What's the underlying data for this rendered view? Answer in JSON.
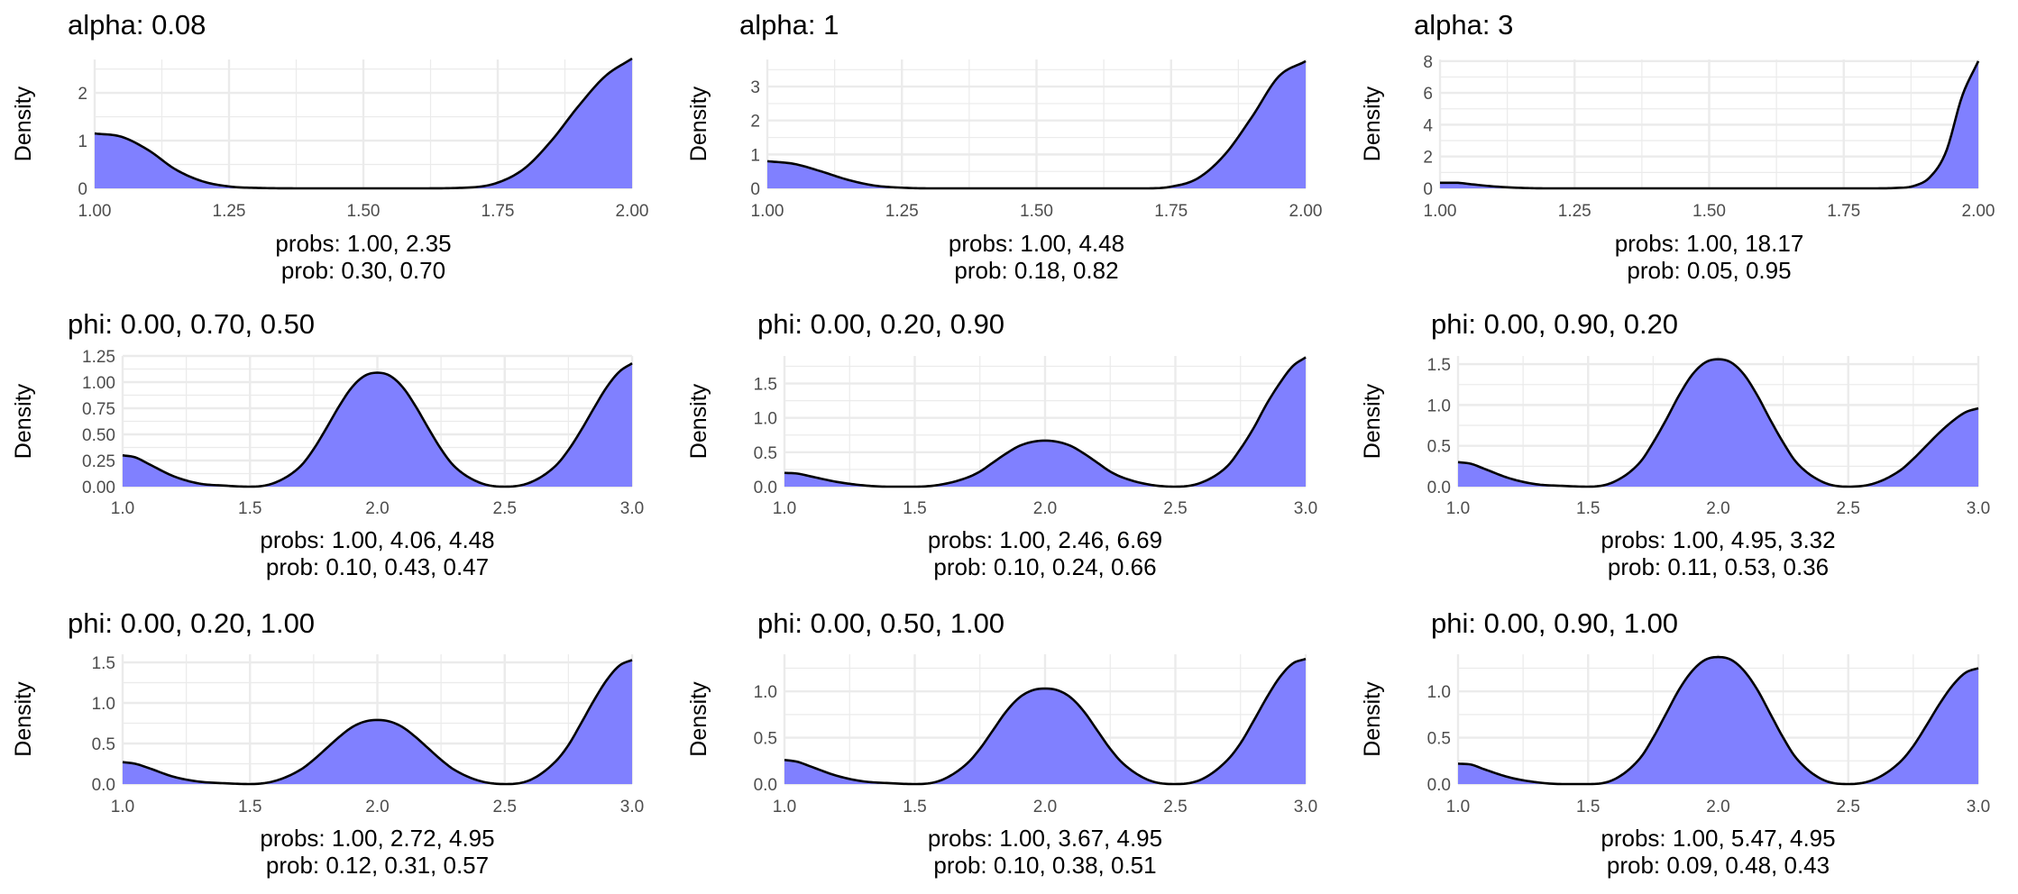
{
  "figure": {
    "background": "#ffffff",
    "fill_color": "#8080ff",
    "line_color": "#000000",
    "grid_color": "#ebebeb"
  },
  "chart_data": [
    {
      "type": "area",
      "title": "alpha: 0.08",
      "ylabel": "Density",
      "xlabel_lines": [
        "probs: 1.00, 2.35",
        "prob: 0.30, 0.70"
      ],
      "xlim": [
        1.0,
        2.0
      ],
      "ylim": [
        0,
        2.7
      ],
      "x_ticks": [
        1.0,
        1.25,
        1.5,
        1.75,
        2.0
      ],
      "x_tick_labels": [
        "1.00",
        "1.25",
        "1.50",
        "1.75",
        "2.00"
      ],
      "y_ticks": [
        0,
        1,
        2
      ],
      "y_tick_labels": [
        "0",
        "1",
        "2"
      ],
      "grid": true,
      "x": [
        1.0,
        1.05,
        1.1,
        1.15,
        1.2,
        1.25,
        1.3,
        1.4,
        1.5,
        1.6,
        1.7,
        1.75,
        1.8,
        1.85,
        1.9,
        1.95,
        2.0
      ],
      "density": [
        1.15,
        1.08,
        0.8,
        0.4,
        0.15,
        0.04,
        0.01,
        0.0,
        0.0,
        0.0,
        0.02,
        0.12,
        0.42,
        1.0,
        1.72,
        2.35,
        2.72
      ]
    },
    {
      "type": "area",
      "title": "alpha: 1",
      "ylabel": "Density",
      "xlabel_lines": [
        "probs: 1.00, 4.48",
        "prob: 0.18, 0.82"
      ],
      "xlim": [
        1.0,
        2.0
      ],
      "ylim": [
        0,
        3.8
      ],
      "x_ticks": [
        1.0,
        1.25,
        1.5,
        1.75,
        2.0
      ],
      "x_tick_labels": [
        "1.00",
        "1.25",
        "1.50",
        "1.75",
        "2.00"
      ],
      "y_ticks": [
        0,
        1,
        2,
        3
      ],
      "y_tick_labels": [
        "0",
        "1",
        "2",
        "3"
      ],
      "grid": true,
      "x": [
        1.0,
        1.05,
        1.1,
        1.15,
        1.2,
        1.25,
        1.3,
        1.4,
        1.5,
        1.6,
        1.7,
        1.75,
        1.8,
        1.85,
        1.9,
        1.95,
        2.0
      ],
      "density": [
        0.8,
        0.72,
        0.5,
        0.25,
        0.08,
        0.02,
        0.0,
        0.0,
        0.0,
        0.0,
        0.0,
        0.05,
        0.3,
        1.0,
        2.1,
        3.3,
        3.75
      ]
    },
    {
      "type": "area",
      "title": "alpha: 3",
      "ylabel": "Density",
      "xlabel_lines": [
        "probs: 1.00, 18.17",
        "prob: 0.05, 0.95"
      ],
      "xlim": [
        1.0,
        2.0
      ],
      "ylim": [
        0,
        8.1
      ],
      "x_ticks": [
        1.0,
        1.25,
        1.5,
        1.75,
        2.0
      ],
      "x_tick_labels": [
        "1.00",
        "1.25",
        "1.50",
        "1.75",
        "2.00"
      ],
      "y_ticks": [
        0,
        2,
        4,
        6,
        8
      ],
      "y_tick_labels": [
        "0",
        "2",
        "4",
        "6",
        "8"
      ],
      "grid": true,
      "x": [
        1.0,
        1.03,
        1.06,
        1.1,
        1.15,
        1.2,
        1.4,
        1.6,
        1.8,
        1.85,
        1.88,
        1.91,
        1.94,
        1.97,
        2.0
      ],
      "density": [
        0.35,
        0.35,
        0.25,
        0.12,
        0.03,
        0.0,
        0.0,
        0.0,
        0.0,
        0.03,
        0.15,
        0.7,
        2.3,
        5.8,
        8.0
      ]
    },
    {
      "type": "area",
      "title": "phi: 0.00, 0.70, 0.50",
      "ylabel": "Density",
      "xlabel_lines": [
        "probs: 1.00, 4.06, 4.48",
        "prob: 0.10, 0.43, 0.47"
      ],
      "xlim": [
        1.0,
        3.0
      ],
      "ylim": [
        0,
        1.25
      ],
      "x_ticks": [
        1.0,
        1.5,
        2.0,
        2.5,
        3.0
      ],
      "x_tick_labels": [
        "1.0",
        "1.5",
        "2.0",
        "2.5",
        "3.0"
      ],
      "y_ticks": [
        0,
        0.25,
        0.5,
        0.75,
        1.0,
        1.25
      ],
      "y_tick_labels": [
        "0.00",
        "0.25",
        "0.50",
        "0.75",
        "1.00",
        "1.25"
      ],
      "grid": true,
      "x": [
        1.0,
        1.05,
        1.1,
        1.2,
        1.3,
        1.4,
        1.5,
        1.6,
        1.7,
        1.75,
        1.8,
        1.85,
        1.9,
        1.95,
        2.0,
        2.05,
        2.1,
        2.15,
        2.2,
        2.25,
        2.3,
        2.4,
        2.5,
        2.6,
        2.7,
        2.75,
        2.8,
        2.85,
        2.9,
        2.95,
        3.0
      ],
      "density": [
        0.3,
        0.28,
        0.22,
        0.1,
        0.03,
        0.01,
        0.0,
        0.04,
        0.2,
        0.36,
        0.56,
        0.77,
        0.95,
        1.06,
        1.09,
        1.06,
        0.95,
        0.77,
        0.56,
        0.36,
        0.2,
        0.04,
        0.0,
        0.04,
        0.2,
        0.35,
        0.54,
        0.75,
        0.95,
        1.1,
        1.18
      ]
    },
    {
      "type": "area",
      "title": "phi: 0.00, 0.20, 0.90",
      "ylabel": "Density",
      "xlabel_lines": [
        "probs: 1.00, 2.46, 6.69",
        "prob: 0.10, 0.24, 0.66"
      ],
      "xlim": [
        1.0,
        3.0
      ],
      "ylim": [
        0,
        1.9
      ],
      "x_ticks": [
        1.0,
        1.5,
        2.0,
        2.5,
        3.0
      ],
      "x_tick_labels": [
        "1.0",
        "1.5",
        "2.0",
        "2.5",
        "3.0"
      ],
      "y_ticks": [
        0,
        0.5,
        1.0,
        1.5
      ],
      "y_tick_labels": [
        "0.0",
        "0.5",
        "1.0",
        "1.5"
      ],
      "grid": true,
      "x": [
        1.0,
        1.05,
        1.1,
        1.2,
        1.3,
        1.4,
        1.5,
        1.6,
        1.7,
        1.75,
        1.8,
        1.85,
        1.9,
        1.95,
        2.0,
        2.05,
        2.1,
        2.15,
        2.2,
        2.25,
        2.3,
        2.4,
        2.5,
        2.6,
        2.7,
        2.75,
        2.8,
        2.85,
        2.9,
        2.95,
        3.0
      ],
      "density": [
        0.2,
        0.19,
        0.15,
        0.07,
        0.02,
        0.0,
        0.0,
        0.03,
        0.13,
        0.22,
        0.35,
        0.48,
        0.59,
        0.65,
        0.67,
        0.65,
        0.59,
        0.48,
        0.35,
        0.22,
        0.13,
        0.03,
        0.0,
        0.06,
        0.3,
        0.55,
        0.85,
        1.2,
        1.5,
        1.75,
        1.88
      ]
    },
    {
      "type": "area",
      "title": "phi: 0.00, 0.90, 0.20",
      "ylabel": "Density",
      "xlabel_lines": [
        "probs: 1.00, 4.95, 3.32",
        "prob: 0.11, 0.53, 0.36"
      ],
      "xlim": [
        1.0,
        3.0
      ],
      "ylim": [
        0,
        1.6
      ],
      "x_ticks": [
        1.0,
        1.5,
        2.0,
        2.5,
        3.0
      ],
      "x_tick_labels": [
        "1.0",
        "1.5",
        "2.0",
        "2.5",
        "3.0"
      ],
      "y_ticks": [
        0,
        0.5,
        1.0,
        1.5
      ],
      "y_tick_labels": [
        "0.0",
        "0.5",
        "1.0",
        "1.5"
      ],
      "grid": true,
      "x": [
        1.0,
        1.05,
        1.1,
        1.2,
        1.3,
        1.4,
        1.5,
        1.6,
        1.7,
        1.75,
        1.8,
        1.85,
        1.9,
        1.95,
        2.0,
        2.05,
        2.1,
        2.15,
        2.2,
        2.25,
        2.3,
        2.4,
        2.5,
        2.6,
        2.7,
        2.75,
        2.8,
        2.85,
        2.9,
        2.95,
        3.0
      ],
      "density": [
        0.3,
        0.28,
        0.22,
        0.1,
        0.03,
        0.01,
        0.0,
        0.06,
        0.3,
        0.54,
        0.82,
        1.12,
        1.37,
        1.52,
        1.56,
        1.52,
        1.37,
        1.12,
        0.82,
        0.54,
        0.3,
        0.06,
        0.0,
        0.04,
        0.2,
        0.34,
        0.5,
        0.66,
        0.8,
        0.91,
        0.96
      ]
    },
    {
      "type": "area",
      "title": "phi: 0.00, 0.20, 1.00",
      "ylabel": "Density",
      "xlabel_lines": [
        "probs: 1.00, 2.72, 4.95",
        "prob: 0.12, 0.31, 0.57"
      ],
      "xlim": [
        1.0,
        3.0
      ],
      "ylim": [
        0,
        1.6
      ],
      "x_ticks": [
        1.0,
        1.5,
        2.0,
        2.5,
        3.0
      ],
      "x_tick_labels": [
        "1.0",
        "1.5",
        "2.0",
        "2.5",
        "3.0"
      ],
      "y_ticks": [
        0,
        0.5,
        1.0,
        1.5
      ],
      "y_tick_labels": [
        "0.0",
        "0.5",
        "1.0",
        "1.5"
      ],
      "grid": true,
      "x": [
        1.0,
        1.05,
        1.1,
        1.2,
        1.3,
        1.4,
        1.5,
        1.6,
        1.7,
        1.75,
        1.8,
        1.85,
        1.9,
        1.95,
        2.0,
        2.05,
        2.1,
        2.15,
        2.2,
        2.25,
        2.3,
        2.4,
        2.5,
        2.6,
        2.7,
        2.75,
        2.8,
        2.85,
        2.9,
        2.95,
        3.0
      ],
      "density": [
        0.27,
        0.25,
        0.2,
        0.09,
        0.03,
        0.01,
        0.0,
        0.04,
        0.18,
        0.3,
        0.44,
        0.58,
        0.7,
        0.77,
        0.79,
        0.77,
        0.7,
        0.58,
        0.44,
        0.3,
        0.18,
        0.04,
        0.0,
        0.05,
        0.28,
        0.48,
        0.75,
        1.03,
        1.28,
        1.46,
        1.53
      ]
    },
    {
      "type": "area",
      "title": "phi: 0.00, 0.50, 1.00",
      "ylabel": "Density",
      "xlabel_lines": [
        "probs: 1.00, 3.67, 4.95",
        "prob: 0.10, 0.38, 0.51"
      ],
      "xlim": [
        1.0,
        3.0
      ],
      "ylim": [
        0,
        1.4
      ],
      "x_ticks": [
        1.0,
        1.5,
        2.0,
        2.5,
        3.0
      ],
      "x_tick_labels": [
        "1.0",
        "1.5",
        "2.0",
        "2.5",
        "3.0"
      ],
      "y_ticks": [
        0,
        0.5,
        1.0
      ],
      "y_tick_labels": [
        "0.0",
        "0.5",
        "1.0"
      ],
      "grid": true,
      "x": [
        1.0,
        1.05,
        1.1,
        1.2,
        1.3,
        1.4,
        1.5,
        1.6,
        1.7,
        1.75,
        1.8,
        1.85,
        1.9,
        1.95,
        2.0,
        2.05,
        2.1,
        2.15,
        2.2,
        2.25,
        2.3,
        2.4,
        2.5,
        2.6,
        2.7,
        2.75,
        2.8,
        2.85,
        2.9,
        2.95,
        3.0
      ],
      "density": [
        0.26,
        0.24,
        0.19,
        0.09,
        0.03,
        0.01,
        0.0,
        0.04,
        0.22,
        0.38,
        0.58,
        0.78,
        0.93,
        1.01,
        1.03,
        1.01,
        0.93,
        0.78,
        0.58,
        0.38,
        0.22,
        0.04,
        0.0,
        0.05,
        0.26,
        0.44,
        0.68,
        0.93,
        1.15,
        1.3,
        1.35
      ]
    },
    {
      "type": "area",
      "title": "phi: 0.00, 0.90, 1.00",
      "ylabel": "Density",
      "xlabel_lines": [
        "probs: 1.00, 5.47, 4.95",
        "prob: 0.09, 0.48, 0.43"
      ],
      "xlim": [
        1.0,
        3.0
      ],
      "ylim": [
        0,
        1.4
      ],
      "x_ticks": [
        1.0,
        1.5,
        2.0,
        2.5,
        3.0
      ],
      "x_tick_labels": [
        "1.0",
        "1.5",
        "2.0",
        "2.5",
        "3.0"
      ],
      "y_ticks": [
        0,
        0.5,
        1.0
      ],
      "y_tick_labels": [
        "0.0",
        "0.5",
        "1.0"
      ],
      "grid": true,
      "x": [
        1.0,
        1.05,
        1.1,
        1.2,
        1.3,
        1.4,
        1.5,
        1.6,
        1.7,
        1.75,
        1.8,
        1.85,
        1.9,
        1.95,
        2.0,
        2.05,
        2.1,
        2.15,
        2.2,
        2.25,
        2.3,
        2.4,
        2.5,
        2.6,
        2.7,
        2.75,
        2.8,
        2.85,
        2.9,
        2.95,
        3.0
      ],
      "density": [
        0.22,
        0.21,
        0.16,
        0.07,
        0.02,
        0.0,
        0.0,
        0.05,
        0.28,
        0.5,
        0.76,
        1.02,
        1.22,
        1.34,
        1.37,
        1.34,
        1.22,
        1.02,
        0.76,
        0.5,
        0.28,
        0.05,
        0.0,
        0.05,
        0.24,
        0.41,
        0.63,
        0.86,
        1.06,
        1.2,
        1.25
      ]
    }
  ]
}
